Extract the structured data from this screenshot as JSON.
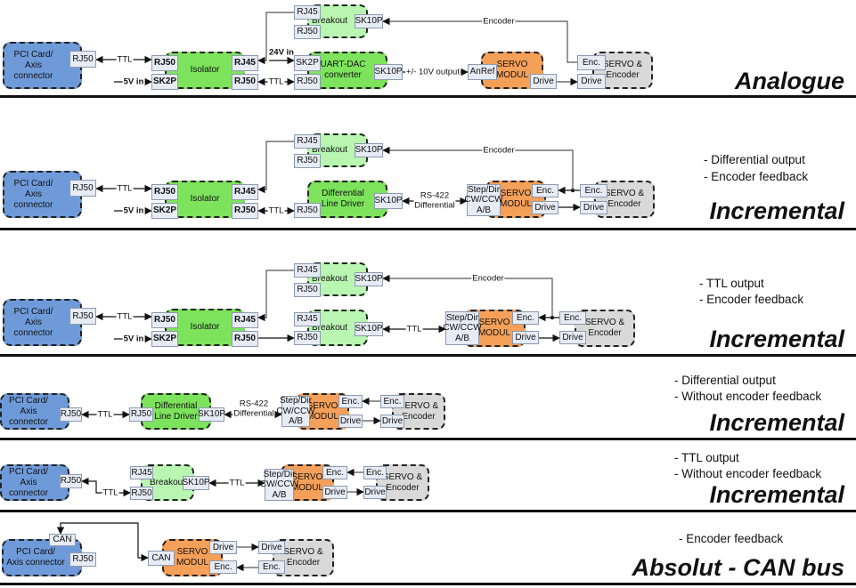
{
  "colors": {
    "pci": "#6f9ad9",
    "isolator": "#7de35c",
    "breakout": "#b9f6b2",
    "servo_modul": "#f5a059",
    "servo_encoder": "#d9d9d9",
    "port": "#e6ebf4"
  },
  "labels": {
    "pci_card": "PCI Card/\nAxis connector",
    "isolator": "Isolator",
    "breakout": "Breakout",
    "uart_dac": "UART-DAC\nconverter",
    "diff_driver": "Differential\nLine Driver",
    "servo_modul": "SERVO\nMODUL",
    "servo_encoder": "SERVO &\nEncoder",
    "rj50": "RJ50",
    "rj45": "RJ45",
    "sk2p": "SK2P",
    "sk10p": "SK10P",
    "enc": "Enc.",
    "drive": "Drive",
    "anref": "AnRef",
    "step_dir": "Step/Dir\nCW/CCW\nA/B",
    "can": "CAN",
    "ttl": "TTL",
    "v5_in": "5V in",
    "v24_in": "24V in",
    "encoder": "Encoder",
    "analog_out": "+/- 10V output",
    "rs422": "RS-422\nDifferential"
  },
  "sections": [
    {
      "title": "Analogue",
      "notes": []
    },
    {
      "title": "Incremental",
      "notes": [
        "- Differential output",
        "- Encoder feedback"
      ]
    },
    {
      "title": "Incremental",
      "notes": [
        "- TTL output",
        "- Encoder feedback"
      ]
    },
    {
      "title": "Incremental",
      "notes": [
        "- Differential output",
        "- Without encoder feedback"
      ]
    },
    {
      "title": "Incremental",
      "notes": [
        "- TTL output",
        "- Without encoder feedback"
      ]
    },
    {
      "title": "Absolut - CAN bus",
      "notes": [
        "- Encoder feedback"
      ]
    }
  ]
}
